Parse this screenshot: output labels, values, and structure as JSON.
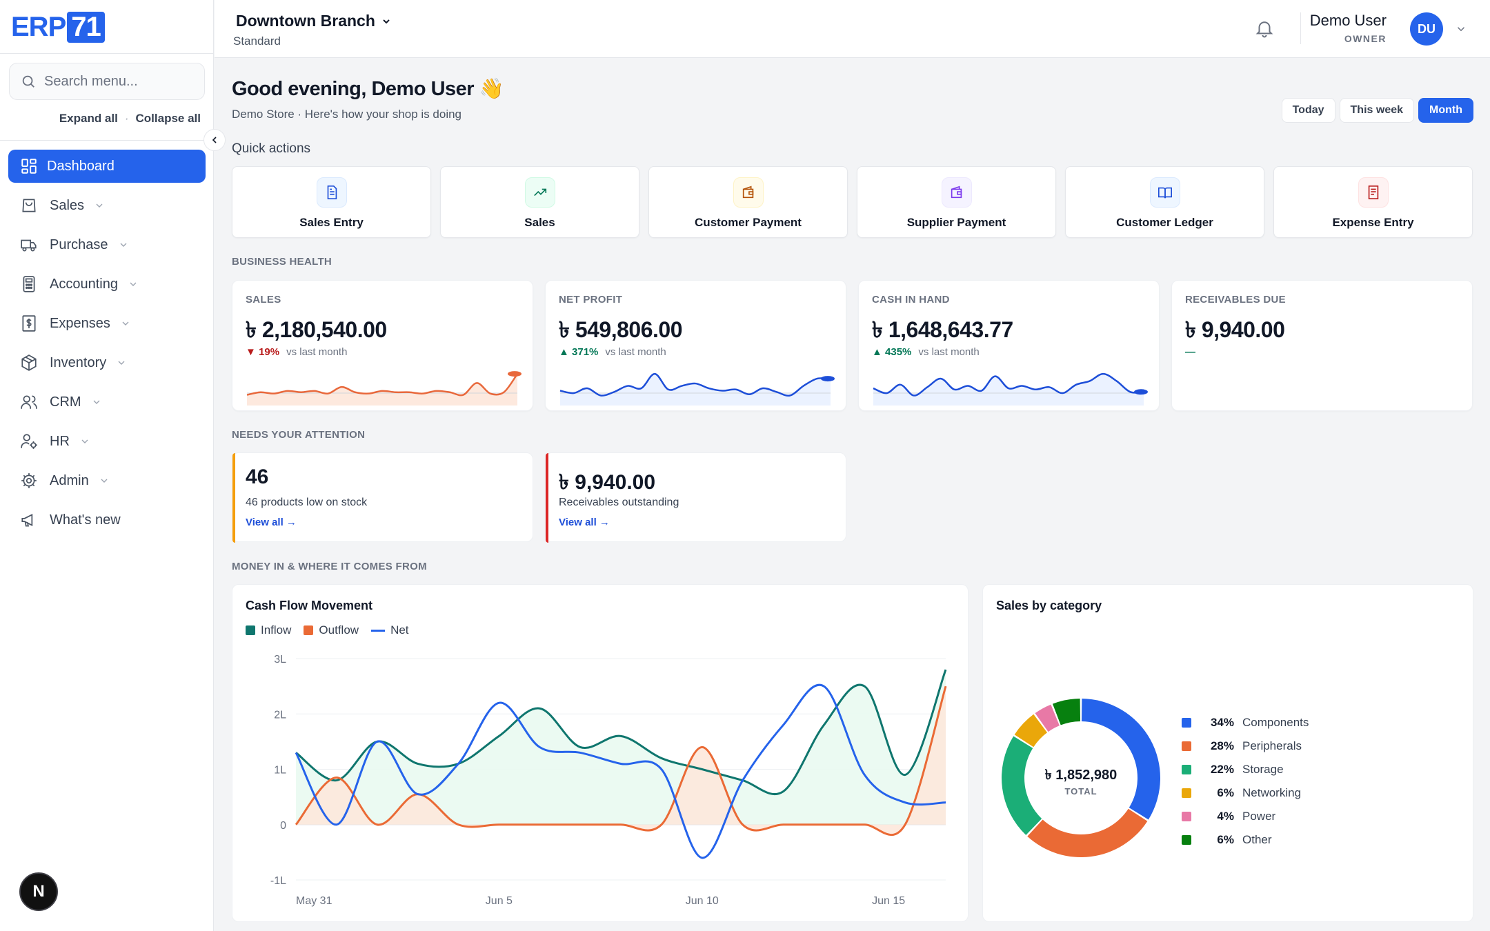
{
  "app": {
    "logo_text": "ERP",
    "logo_num": "71"
  },
  "sidebar": {
    "search_placeholder": "Search menu...",
    "expand_all": "Expand all",
    "collapse_all": "Collapse all",
    "items": [
      {
        "label": "Dashboard",
        "icon": "dashboard-icon",
        "active": true
      },
      {
        "label": "Sales",
        "icon": "bag-icon"
      },
      {
        "label": "Purchase",
        "icon": "truck-icon"
      },
      {
        "label": "Accounting",
        "icon": "calculator-icon"
      },
      {
        "label": "Expenses",
        "icon": "dollar-receipt-icon"
      },
      {
        "label": "Inventory",
        "icon": "box-icon"
      },
      {
        "label": "CRM",
        "icon": "users-icon"
      },
      {
        "label": "HR",
        "icon": "user-gear-icon"
      },
      {
        "label": "Admin",
        "icon": "gear-icon"
      },
      {
        "label": "What's new",
        "icon": "megaphone-icon"
      }
    ],
    "badge": "N"
  },
  "header": {
    "branch": "Downtown Branch",
    "plan": "Standard",
    "user_name": "Demo User",
    "user_role": "OWNER",
    "avatar_initials": "DU"
  },
  "main": {
    "greeting": "Good evening, Demo User 👋",
    "subtitle": "Demo Store · Here's how your shop is doing",
    "ranges": [
      "Today",
      "This week",
      "Month"
    ],
    "active_range": "Month",
    "quick_actions_title": "Quick actions",
    "quick_actions": [
      {
        "label": "Sales Entry",
        "icon": "document-icon"
      },
      {
        "label": "Sales",
        "icon": "trending-up-icon"
      },
      {
        "label": "Customer Payment",
        "icon": "wallet-icon"
      },
      {
        "label": "Supplier Payment",
        "icon": "wallet-icon"
      },
      {
        "label": "Customer Ledger",
        "icon": "book-open-icon"
      },
      {
        "label": "Expense Entry",
        "icon": "receipt-icon"
      }
    ],
    "business_health_title": "BUSINESS HEALTH",
    "kpis": [
      {
        "label": "SALES",
        "value": "৳ 2,180,540.00",
        "delta": "19%",
        "direction": "down",
        "vs": "vs last month"
      },
      {
        "label": "NET PROFIT",
        "value": "৳ 549,806.00",
        "delta": "371%",
        "direction": "up",
        "vs": "vs last month"
      },
      {
        "label": "CASH IN HAND",
        "value": "৳ 1,648,643.77",
        "delta": "435%",
        "direction": "up",
        "vs": "vs last month"
      },
      {
        "label": "RECEIVABLES DUE",
        "value": "৳ 9,940.00",
        "delta": "—",
        "direction": "none",
        "vs": ""
      }
    ],
    "attention_title": "NEEDS YOUR ATTENTION",
    "attention": [
      {
        "value": "46",
        "desc": "46 products low on stock",
        "link": "View all →",
        "color": "#f59e0b"
      },
      {
        "value": "৳ 9,940.00",
        "desc": "Receivables outstanding",
        "link": "View all →",
        "color": "#dc2626"
      }
    ],
    "money_title": "MONEY IN & WHERE IT COMES FROM"
  },
  "cashflow": {
    "title": "Cash Flow Movement",
    "legend": [
      "Inflow",
      "Outflow",
      "Net"
    ]
  },
  "category": {
    "title": "Sales by category",
    "total_value": "৳ 1,852,980",
    "total_label": "TOTAL"
  },
  "chart_data": [
    {
      "type": "line",
      "title": "Cash Flow Movement",
      "x_tick_labels": [
        "May 31",
        "Jun 5",
        "Jun 10",
        "Jun 15"
      ],
      "x": [
        "May 31",
        "Jun 1",
        "Jun 2",
        "Jun 3",
        "Jun 4",
        "Jun 5",
        "Jun 6",
        "Jun 7",
        "Jun 8",
        "Jun 9",
        "Jun 10",
        "Jun 11",
        "Jun 12",
        "Jun 13",
        "Jun 14",
        "Jun 15",
        "Jun 16"
      ],
      "yticks": [
        "3L",
        "2L",
        "1L",
        "0",
        "-1L"
      ],
      "ylim": [
        -100000,
        300000
      ],
      "series": [
        {
          "name": "Inflow",
          "color": "#0f766e",
          "values": [
            130000,
            80000,
            150000,
            110000,
            110000,
            160000,
            210000,
            140000,
            160000,
            120000,
            100000,
            80000,
            60000,
            180000,
            250000,
            90000,
            280000
          ]
        },
        {
          "name": "Outflow",
          "color": "#ea6a35",
          "values": [
            0,
            85000,
            0,
            55000,
            0,
            0,
            0,
            0,
            0,
            0,
            140000,
            0,
            0,
            0,
            0,
            0,
            250000
          ]
        },
        {
          "name": "Net",
          "color": "#2563eb",
          "values": [
            130000,
            0,
            150000,
            55000,
            110000,
            220000,
            140000,
            130000,
            110000,
            100000,
            -60000,
            80000,
            180000,
            250000,
            90000,
            40000,
            40000
          ]
        }
      ]
    },
    {
      "type": "pie",
      "title": "Sales by category",
      "slices": [
        {
          "label": "Components",
          "pct": 34,
          "color": "#2563eb"
        },
        {
          "label": "Peripherals",
          "pct": 28,
          "color": "#ea6a35"
        },
        {
          "label": "Storage",
          "pct": 22,
          "color": "#1bae77"
        },
        {
          "label": "Networking",
          "pct": 6,
          "color": "#eaa70a"
        },
        {
          "label": "Power",
          "pct": 4,
          "color": "#e879a6"
        },
        {
          "label": "Other",
          "pct": 6,
          "color": "#07800f"
        }
      ]
    },
    {
      "type": "line",
      "title": "",
      "series": [
        {
          "name": "",
          "color": "#e8683b",
          "values": [
            6,
            8,
            7,
            9,
            8,
            9,
            7,
            12,
            8,
            7,
            9,
            8,
            8,
            7,
            9,
            8,
            6,
            15,
            7,
            8,
            22
          ]
        },
        {
          "name": "",
          "color": "#1d4ed8",
          "values": [
            10,
            8,
            12,
            6,
            9,
            14,
            12,
            24,
            11,
            14,
            16,
            12,
            10,
            11,
            7,
            12,
            9,
            6,
            14,
            20,
            20
          ]
        },
        {
          "name": "",
          "color": "#1d4ed8",
          "values": [
            12,
            8,
            15,
            6,
            13,
            20,
            11,
            14,
            10,
            22,
            12,
            14,
            11,
            13,
            8,
            15,
            18,
            24,
            18,
            9,
            9
          ]
        }
      ]
    }
  ]
}
